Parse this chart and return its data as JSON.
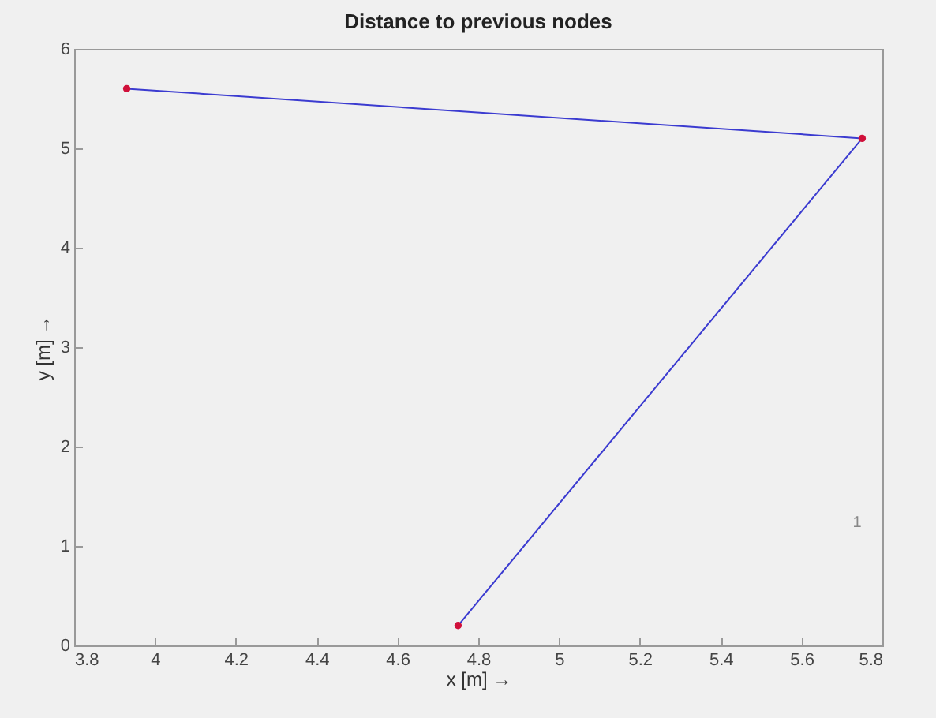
{
  "chart_data": {
    "type": "line",
    "title": "Distance to previous nodes",
    "xlabel": "x  [m] →",
    "ylabel": "y  [m] →",
    "x": [
      3.93,
      5.75,
      4.75
    ],
    "series": [
      {
        "color": "#3b3bd0",
        "values": [
          5.6,
          5.1,
          0.2
        ]
      },
      {
        "type": "scatter",
        "color": "#d0103a",
        "values": [
          5.6,
          5.1,
          0.2
        ]
      }
    ],
    "xlim": [
      3.8,
      5.8
    ],
    "xticks": [
      3.8,
      4,
      4.2,
      4.4,
      4.6,
      4.8,
      5,
      5.2,
      5.4,
      5.6,
      5.8
    ],
    "ylim": [
      0,
      6
    ],
    "yticks": [
      0,
      1,
      2,
      3,
      4,
      5,
      6
    ],
    "annotations": [
      "1"
    ],
    "grid": false
  }
}
